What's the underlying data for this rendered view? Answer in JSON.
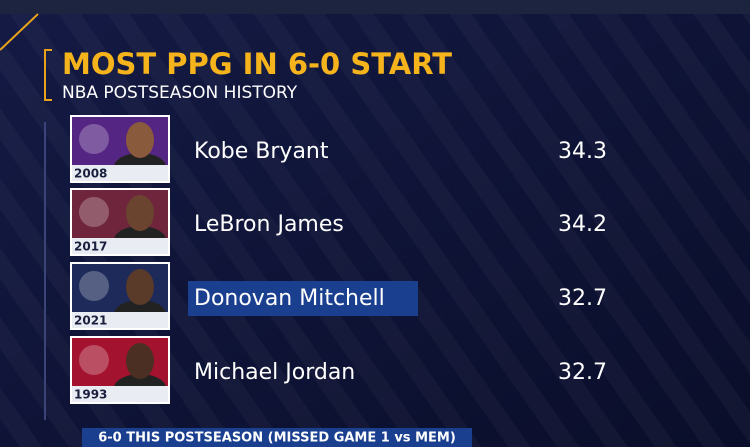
{
  "header": {
    "title": "MOST PPG IN 6-0 START",
    "subtitle": "NBA POSTSEASON HISTORY"
  },
  "table": {
    "rows": [
      {
        "year": 2008,
        "name": "Kobe Bryant",
        "ppg": 34.3
      },
      {
        "year": 2017,
        "name": "LeBron James",
        "ppg": 34.2
      },
      {
        "year": 2021,
        "name": "Donovan Mitchell",
        "ppg": 32.7
      },
      {
        "year": 1993,
        "name": "Michael Jordan",
        "ppg": 32.7
      }
    ]
  },
  "footer": "6-0 THIS POSTSEASON (MISSED GAME 1 vs MEM)"
}
